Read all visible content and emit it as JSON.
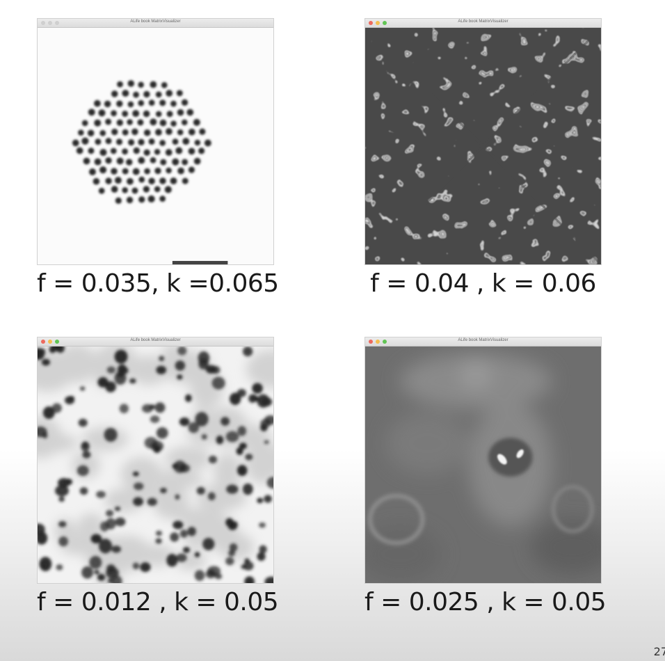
{
  "window_title": "ALife book MatrixVisualizer",
  "traffic_lights": {
    "close": "#ed6a5e",
    "minimize": "#f5bf4f",
    "maximize": "#61c554",
    "inactive": "#cfcfcf"
  },
  "panels": [
    {
      "caption": "f = 0.035, k =0.065",
      "pattern": "spot-cluster",
      "active": false
    },
    {
      "caption": "f = 0.04 , k = 0.06",
      "pattern": "labyrinth-stripes",
      "active": true
    },
    {
      "caption": "f = 0.012 , k = 0.05",
      "pattern": "scattered-spots",
      "active": true
    },
    {
      "caption": "f = 0.025 , k = 0.05",
      "pattern": "gray-field",
      "active": true
    }
  ],
  "page_number": "27"
}
